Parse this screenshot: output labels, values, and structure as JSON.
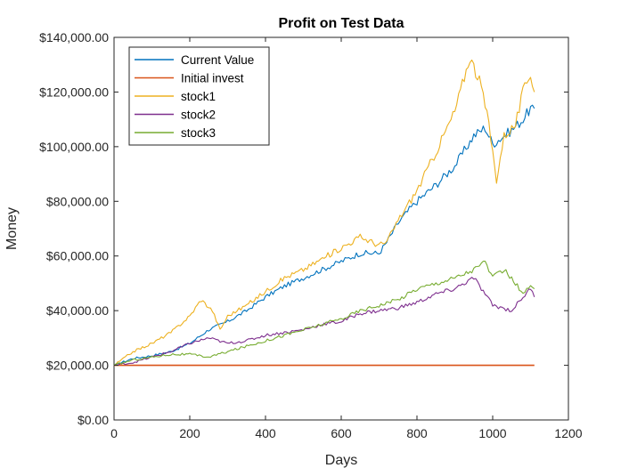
{
  "chart_data": {
    "type": "line",
    "title": "Profit on Test Data",
    "xlabel": "Days",
    "ylabel": "Money",
    "xlim": [
      0,
      1200
    ],
    "ylim": [
      0,
      140000
    ],
    "xticks": [
      0,
      200,
      400,
      600,
      800,
      1000,
      1200
    ],
    "xtick_labels": [
      "0",
      "200",
      "400",
      "600",
      "800",
      "1000",
      "1200"
    ],
    "yticks": [
      0,
      20000,
      40000,
      60000,
      80000,
      100000,
      120000,
      140000
    ],
    "ytick_labels": [
      "$0.00",
      "$20,000.00",
      "$40,000.00",
      "$60,000.00",
      "$80,000.00",
      "$100,000.00",
      "$120,000.00",
      "$140,000.00"
    ],
    "grid": false,
    "legend_position": "top-left",
    "series": [
      {
        "name": "Current Value",
        "color": "#0072BD",
        "points": [
          [
            0,
            20000
          ],
          [
            50,
            22500
          ],
          [
            100,
            23500
          ],
          [
            150,
            25000
          ],
          [
            200,
            28000
          ],
          [
            250,
            33000
          ],
          [
            300,
            36000
          ],
          [
            350,
            40000
          ],
          [
            400,
            45000
          ],
          [
            450,
            49000
          ],
          [
            500,
            52000
          ],
          [
            550,
            55000
          ],
          [
            600,
            58000
          ],
          [
            650,
            61000
          ],
          [
            700,
            61000
          ],
          [
            720,
            65000
          ],
          [
            750,
            72000
          ],
          [
            780,
            77000
          ],
          [
            800,
            80000
          ],
          [
            850,
            86000
          ],
          [
            900,
            93000
          ],
          [
            950,
            104000
          ],
          [
            980,
            107000
          ],
          [
            1000,
            101000
          ],
          [
            1050,
            106000
          ],
          [
            1080,
            110000
          ],
          [
            1100,
            114000
          ],
          [
            1110,
            114000
          ]
        ]
      },
      {
        "name": "Initial invest",
        "color": "#D95319",
        "points": [
          [
            0,
            20000
          ],
          [
            1110,
            20000
          ]
        ]
      },
      {
        "name": "stock1",
        "color": "#EDB120",
        "points": [
          [
            0,
            20000
          ],
          [
            50,
            25000
          ],
          [
            100,
            28000
          ],
          [
            150,
            32000
          ],
          [
            200,
            38000
          ],
          [
            230,
            44000
          ],
          [
            260,
            40000
          ],
          [
            280,
            33000
          ],
          [
            300,
            38000
          ],
          [
            350,
            42000
          ],
          [
            400,
            47000
          ],
          [
            450,
            52000
          ],
          [
            500,
            55000
          ],
          [
            550,
            59000
          ],
          [
            600,
            63000
          ],
          [
            650,
            67000
          ],
          [
            700,
            64000
          ],
          [
            720,
            65000
          ],
          [
            750,
            73000
          ],
          [
            800,
            84000
          ],
          [
            850,
            98000
          ],
          [
            900,
            113000
          ],
          [
            940,
            133000
          ],
          [
            970,
            122000
          ],
          [
            990,
            108000
          ],
          [
            1010,
            88000
          ],
          [
            1030,
            104000
          ],
          [
            1060,
            108000
          ],
          [
            1080,
            120000
          ],
          [
            1100,
            127000
          ],
          [
            1110,
            120000
          ]
        ]
      },
      {
        "name": "stock2",
        "color": "#7E2F8E",
        "points": [
          [
            0,
            20000
          ],
          [
            50,
            21000
          ],
          [
            100,
            23000
          ],
          [
            150,
            25000
          ],
          [
            200,
            28000
          ],
          [
            250,
            30000
          ],
          [
            300,
            28000
          ],
          [
            350,
            29000
          ],
          [
            400,
            31000
          ],
          [
            450,
            32000
          ],
          [
            500,
            33000
          ],
          [
            550,
            35000
          ],
          [
            600,
            36000
          ],
          [
            650,
            39000
          ],
          [
            700,
            40000
          ],
          [
            750,
            41000
          ],
          [
            800,
            43000
          ],
          [
            850,
            46000
          ],
          [
            900,
            48000
          ],
          [
            950,
            52000
          ],
          [
            1000,
            42000
          ],
          [
            1050,
            40000
          ],
          [
            1080,
            45000
          ],
          [
            1100,
            48000
          ],
          [
            1110,
            45000
          ]
        ]
      },
      {
        "name": "stock3",
        "color": "#77AC30",
        "points": [
          [
            0,
            20000
          ],
          [
            50,
            22000
          ],
          [
            100,
            23000
          ],
          [
            150,
            24000
          ],
          [
            200,
            24000
          ],
          [
            250,
            23000
          ],
          [
            300,
            25000
          ],
          [
            350,
            27000
          ],
          [
            400,
            29000
          ],
          [
            450,
            31000
          ],
          [
            500,
            33000
          ],
          [
            550,
            35000
          ],
          [
            600,
            37000
          ],
          [
            650,
            40000
          ],
          [
            700,
            42000
          ],
          [
            750,
            44000
          ],
          [
            800,
            48000
          ],
          [
            850,
            50000
          ],
          [
            900,
            52000
          ],
          [
            950,
            55000
          ],
          [
            980,
            58000
          ],
          [
            1000,
            52000
          ],
          [
            1030,
            55000
          ],
          [
            1060,
            50000
          ],
          [
            1080,
            46000
          ],
          [
            1100,
            49000
          ],
          [
            1110,
            48000
          ]
        ]
      }
    ]
  }
}
